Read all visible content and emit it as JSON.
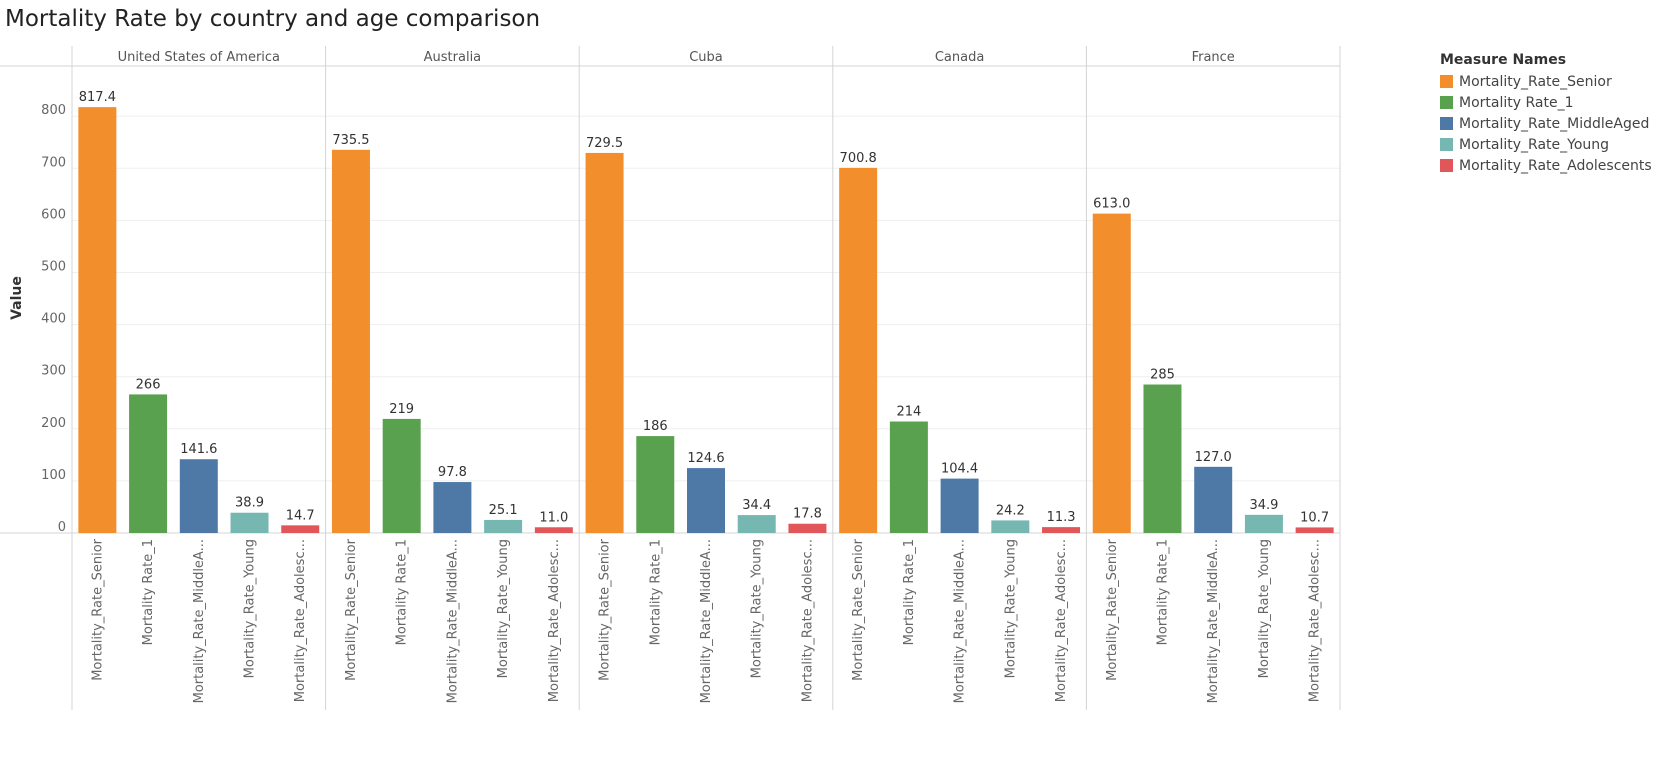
{
  "title": "Mortality Rate by country and age comparison",
  "chart_data": {
    "type": "bar",
    "ylabel": "Value",
    "ylim": [
      0,
      900
    ],
    "yticks": [
      0,
      100,
      200,
      300,
      400,
      500,
      600,
      700,
      800
    ],
    "grid": true,
    "legend_position": "right",
    "legend_title": "Measure Names",
    "panels": [
      "United States of America",
      "Australia",
      "Cuba",
      "Canada",
      "France"
    ],
    "categories": [
      "Mortality_Rate_Senior",
      "Mortality Rate_1",
      "Mortality_Rate_MiddleA...",
      "Mortality_Rate_Young",
      "Mortality_Rate_Adolesc..."
    ],
    "series": [
      {
        "name": "Mortality_Rate_Senior",
        "color": "#f28e2b",
        "values": [
          817.4,
          735.5,
          729.5,
          700.8,
          613.0
        ],
        "labels": [
          "817.4",
          "735.5",
          "729.5",
          "700.8",
          "613.0"
        ]
      },
      {
        "name": "Mortality Rate_1",
        "color": "#59a14f",
        "values": [
          266,
          219,
          186,
          214,
          285
        ],
        "labels": [
          "266",
          "219",
          "186",
          "214",
          "285"
        ]
      },
      {
        "name": "Mortality_Rate_MiddleAged",
        "color": "#4e79a7",
        "values": [
          141.6,
          97.8,
          124.6,
          104.4,
          127.0
        ],
        "labels": [
          "141.6",
          "97.8",
          "124.6",
          "104.4",
          "127.0"
        ]
      },
      {
        "name": "Mortality_Rate_Young",
        "color": "#76b7b2",
        "values": [
          38.9,
          25.1,
          34.4,
          24.2,
          34.9
        ],
        "labels": [
          "38.9",
          "25.1",
          "34.4",
          "24.2",
          "34.9"
        ]
      },
      {
        "name": "Mortality_Rate_Adolescents",
        "color": "#e15759",
        "values": [
          14.7,
          11.0,
          17.8,
          11.3,
          10.7
        ],
        "labels": [
          "14.7",
          "11.0",
          "17.8",
          "11.3",
          "10.7"
        ]
      }
    ]
  }
}
